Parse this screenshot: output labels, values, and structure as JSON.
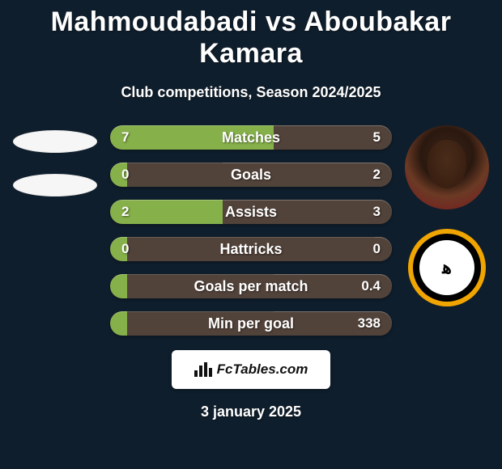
{
  "background_color": "#0f1e2c",
  "text_color": "#ffffff",
  "title": "Mahmoudabadi vs Aboubakar Kamara",
  "subtitle": "Club competitions, Season 2024/2025",
  "date": "3 january 2025",
  "bar_track_color": "#52433a",
  "bar_left_fill_color": "#86b04a",
  "bar_right_fill_color": "#52433a",
  "bar_label_color": "#ffffff",
  "stats": [
    {
      "label": "Matches",
      "left_value": "7",
      "right_value": "5",
      "left_pct": 58,
      "right_pct": 42
    },
    {
      "label": "Goals",
      "left_value": "0",
      "right_value": "2",
      "left_pct": 6,
      "right_pct": 60
    },
    {
      "label": "Assists",
      "left_value": "2",
      "right_value": "3",
      "left_pct": 40,
      "right_pct": 60
    },
    {
      "label": "Hattricks",
      "left_value": "0",
      "right_value": "0",
      "left_pct": 6,
      "right_pct": 6
    },
    {
      "label": "Goals per match",
      "left_value": "",
      "right_value": "0.4",
      "left_pct": 6,
      "right_pct": 42
    },
    {
      "label": "Min per goal",
      "left_value": "",
      "right_value": "338",
      "left_pct": 6,
      "right_pct": 42
    }
  ],
  "left_player": {
    "placeholder_color": "#f6f6f6"
  },
  "right_player": {
    "club_logo": {
      "outer_color": "#f0a500",
      "ring_color": "#000000",
      "inner_bg": "#ffffff",
      "glyph": "ه‍",
      "glyph_color": "#000000"
    }
  },
  "footer": {
    "bg": "#ffffff",
    "text": "FcTables.com"
  }
}
